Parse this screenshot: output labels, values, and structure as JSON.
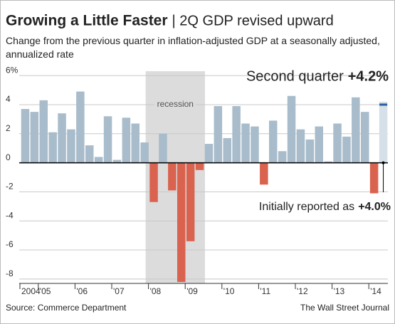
{
  "chart_data": {
    "type": "bar",
    "title": "Growing a Little Faster",
    "title_suffix": "| 2Q GDP revised upward",
    "subtitle": "Change from the previous quarter in inflation-adjusted GDP at a seasonally adjusted, annualized rate",
    "source": "Source: Commerce Department",
    "credit": "The Wall Street Journal",
    "categories": [
      "2004",
      null,
      "'05",
      null,
      null,
      null,
      "'06",
      null,
      null,
      null,
      "'07",
      null,
      null,
      null,
      "'08",
      null,
      null,
      null,
      "'09",
      null,
      null,
      null,
      "'10",
      null,
      null,
      null,
      "'11",
      null,
      null,
      null,
      "'12",
      null,
      null,
      null,
      "'13",
      null,
      null,
      null,
      "'14",
      null
    ],
    "values": [
      3.7,
      3.5,
      4.3,
      2.1,
      3.4,
      2.3,
      4.9,
      1.2,
      0.4,
      3.2,
      0.2,
      3.1,
      2.7,
      1.4,
      -2.7,
      2.0,
      -1.9,
      -8.2,
      -5.4,
      -0.5,
      1.3,
      3.9,
      1.7,
      3.9,
      2.7,
      2.5,
      -1.5,
      2.9,
      0.8,
      4.6,
      2.3,
      1.6,
      2.5,
      0.1,
      2.7,
      1.8,
      4.5,
      3.5,
      -2.1,
      4.2
    ],
    "value_labels": [
      null,
      null,
      null,
      null,
      null,
      null,
      null,
      null,
      null,
      null,
      null,
      null,
      null,
      null,
      null,
      null,
      null,
      null,
      null,
      null,
      null,
      null,
      null,
      null,
      null,
      null,
      null,
      null,
      null,
      null,
      null,
      null,
      null,
      null,
      null,
      null,
      null,
      null,
      null,
      "+4.2%"
    ],
    "latest_text": "Second quarter",
    "initial": {
      "text": "Initially reported as",
      "label": "+4.0%",
      "value": 4.0
    },
    "shaded_range": {
      "label": "recession",
      "from": 14,
      "to": 19,
      "color": "#dcdcdc"
    },
    "colors": {
      "positive": "#a8bccb",
      "negative": "#d9634f",
      "latest": "#d5e0e9",
      "initial": "#2a5d9a"
    },
    "ylim": [
      -8.3,
      6.3
    ],
    "yticks": [
      {
        "value": 6,
        "label": "6%"
      },
      4,
      2,
      0,
      -2,
      -4,
      -6,
      -8
    ],
    "grid": true
  }
}
